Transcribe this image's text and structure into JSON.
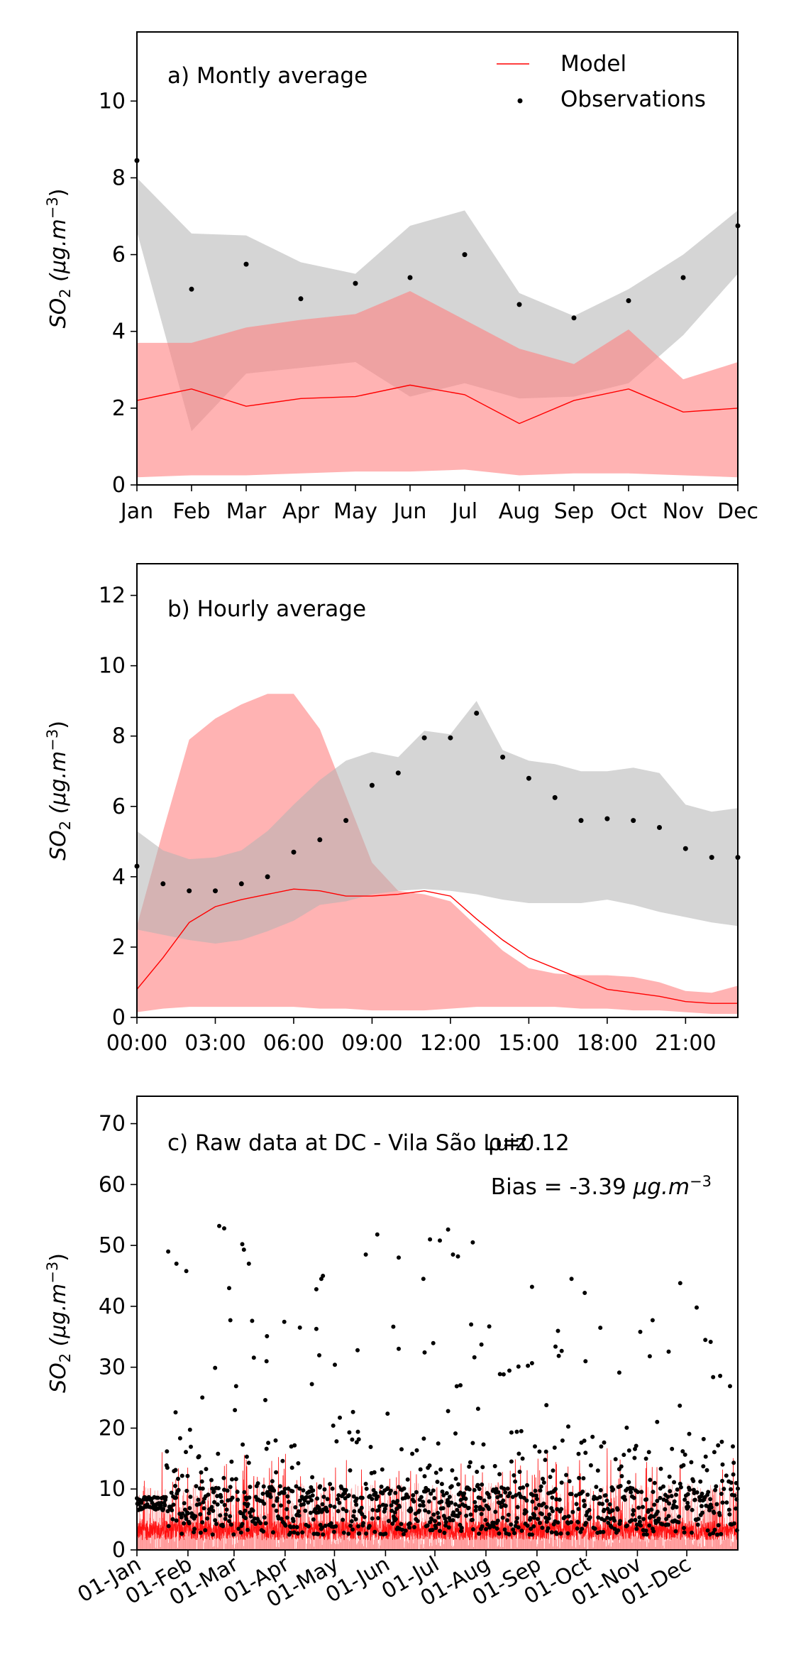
{
  "colors": {
    "model": "#ff0000",
    "model_band": "#ff8080",
    "obs": "#000000",
    "obs_band": "#b3b3b3"
  },
  "chart_data": [
    {
      "type": "line",
      "title": "a) Montly average",
      "ylabel": "SO₂ (μg.m⁻³)",
      "ylabel_parts": {
        "main": "SO",
        "sub": "2",
        "rest": " (μg.m",
        "sup": "−3",
        "close": ")"
      },
      "categories": [
        "Jan",
        "Feb",
        "Mar",
        "Apr",
        "May",
        "Jun",
        "Jul",
        "Aug",
        "Sep",
        "Oct",
        "Nov",
        "Dec"
      ],
      "ylim": [
        0,
        11.8
      ],
      "yticks": [
        0,
        2,
        4,
        6,
        8,
        10
      ],
      "legend": {
        "position": "top-right",
        "model_label": "Model",
        "obs_label": "Observations"
      },
      "series": [
        {
          "name": "Model",
          "kind": "line",
          "values": [
            2.2,
            2.5,
            2.05,
            2.25,
            2.3,
            2.6,
            2.35,
            1.6,
            2.2,
            2.5,
            1.9,
            2.0
          ]
        },
        {
          "name": "Model range",
          "kind": "band",
          "lower": [
            0.2,
            0.25,
            0.25,
            0.3,
            0.35,
            0.35,
            0.4,
            0.25,
            0.3,
            0.3,
            0.25,
            0.2
          ],
          "upper": [
            3.7,
            3.7,
            4.1,
            4.3,
            4.45,
            5.05,
            4.3,
            3.55,
            3.15,
            4.05,
            2.75,
            3.2
          ]
        },
        {
          "name": "Observations",
          "kind": "scatter",
          "values": [
            8.45,
            5.1,
            5.75,
            4.85,
            5.25,
            5.4,
            6.0,
            4.7,
            4.35,
            4.8,
            5.4,
            6.75
          ]
        },
        {
          "name": "Observation range",
          "kind": "band",
          "lower": [
            6.6,
            1.4,
            2.9,
            3.05,
            3.2,
            2.3,
            2.65,
            2.25,
            2.3,
            2.65,
            3.9,
            5.5
          ],
          "upper": [
            8.0,
            6.55,
            6.5,
            5.8,
            5.5,
            6.75,
            7.15,
            5.0,
            4.4,
            5.1,
            6.0,
            7.15
          ]
        }
      ]
    },
    {
      "type": "line",
      "title": "b) Hourly average",
      "ylabel_parts": {
        "main": "SO",
        "sub": "2",
        "rest": " (μg.m",
        "sup": "−3",
        "close": ")"
      },
      "x": [
        0,
        1,
        2,
        3,
        4,
        5,
        6,
        7,
        8,
        9,
        10,
        11,
        12,
        13,
        14,
        15,
        16,
        17,
        18,
        19,
        20,
        21,
        22,
        23
      ],
      "xticks": [
        "00:00",
        "03:00",
        "06:00",
        "09:00",
        "12:00",
        "15:00",
        "18:00",
        "21:00"
      ],
      "xlim": [
        0,
        23
      ],
      "ylim": [
        0,
        12.9
      ],
      "yticks": [
        0,
        2,
        4,
        6,
        8,
        10,
        12
      ],
      "series": [
        {
          "name": "Model",
          "kind": "line",
          "values": [
            0.8,
            1.7,
            2.7,
            3.15,
            3.35,
            3.5,
            3.65,
            3.6,
            3.45,
            3.45,
            3.5,
            3.6,
            3.45,
            2.8,
            2.2,
            1.7,
            1.4,
            1.1,
            0.8,
            0.7,
            0.6,
            0.45,
            0.4,
            0.4
          ]
        },
        {
          "name": "Model range",
          "kind": "band",
          "lower": [
            0.15,
            0.25,
            0.3,
            0.3,
            0.3,
            0.3,
            0.3,
            0.25,
            0.25,
            0.2,
            0.2,
            0.2,
            0.25,
            0.3,
            0.3,
            0.3,
            0.3,
            0.25,
            0.25,
            0.2,
            0.2,
            0.15,
            0.1,
            0.1
          ],
          "upper": [
            2.6,
            5.3,
            7.9,
            8.5,
            8.9,
            9.2,
            9.2,
            8.2,
            6.3,
            4.4,
            3.6,
            3.5,
            3.3,
            2.6,
            1.9,
            1.4,
            1.25,
            1.2,
            1.2,
            1.15,
            1.0,
            0.75,
            0.7,
            0.9
          ]
        },
        {
          "name": "Observations",
          "kind": "scatter",
          "values": [
            4.3,
            3.8,
            3.6,
            3.6,
            3.8,
            4.0,
            4.7,
            5.05,
            5.6,
            6.6,
            6.95,
            7.95,
            7.95,
            8.65,
            7.4,
            6.8,
            6.25,
            5.6,
            5.65,
            5.6,
            5.4,
            4.8,
            4.55,
            4.55
          ]
        },
        {
          "name": "Observation range",
          "kind": "band",
          "lower": [
            2.5,
            2.35,
            2.2,
            2.1,
            2.2,
            2.45,
            2.75,
            3.2,
            3.3,
            3.5,
            3.6,
            3.65,
            3.6,
            3.5,
            3.35,
            3.25,
            3.25,
            3.25,
            3.35,
            3.2,
            3.0,
            2.85,
            2.7,
            2.6
          ],
          "upper": [
            5.3,
            4.75,
            4.5,
            4.55,
            4.75,
            5.3,
            6.05,
            6.75,
            7.3,
            7.55,
            7.4,
            8.15,
            8.05,
            9.0,
            7.6,
            7.3,
            7.2,
            7.0,
            7.0,
            7.1,
            6.95,
            6.05,
            5.85,
            5.95
          ]
        }
      ]
    },
    {
      "type": "scatter",
      "title": "c) Raw data at DC - Vila São Luiz",
      "overlay_label": "ρ=0.12",
      "bias_label": "Bias = -3.39",
      "bias_unit_parts": {
        "rest": "μg.m",
        "sup": "−3"
      },
      "ylabel_parts": {
        "main": "SO",
        "sub": "2",
        "rest": " (μg.m",
        "sup": "−3",
        "close": ")"
      },
      "xticks": [
        "01-Jan",
        "01-Feb",
        "01-Mar",
        "01-Apr",
        "01-May",
        "01-Jun",
        "01-Jul",
        "01-Aug",
        "01-Sep",
        "01-Oct",
        "01-Nov",
        "01-Dec"
      ],
      "xtick_days": [
        0,
        31,
        59,
        90,
        120,
        151,
        181,
        212,
        243,
        273,
        304,
        334
      ],
      "xlim": [
        0,
        365
      ],
      "ylim": [
        0,
        74.5
      ],
      "yticks": [
        0,
        10,
        20,
        30,
        40,
        50,
        60,
        70
      ],
      "notable_observations": [
        {
          "x": 19,
          "y": 49
        },
        {
          "x": 24,
          "y": 47
        },
        {
          "x": 30,
          "y": 45.8
        },
        {
          "x": 50,
          "y": 53.2
        },
        {
          "x": 53,
          "y": 52.8
        },
        {
          "x": 56,
          "y": 43
        },
        {
          "x": 64,
          "y": 50.2
        },
        {
          "x": 65,
          "y": 49.3
        },
        {
          "x": 68,
          "y": 47
        },
        {
          "x": 99,
          "y": 36.5
        },
        {
          "x": 109,
          "y": 42.8
        },
        {
          "x": 112,
          "y": 44.5
        },
        {
          "x": 113,
          "y": 45
        },
        {
          "x": 139,
          "y": 48.5
        },
        {
          "x": 146,
          "y": 51.8
        },
        {
          "x": 159,
          "y": 48
        },
        {
          "x": 174,
          "y": 44.5
        },
        {
          "x": 178,
          "y": 51
        },
        {
          "x": 184,
          "y": 50.8
        },
        {
          "x": 189,
          "y": 52.6
        },
        {
          "x": 192,
          "y": 48.5
        },
        {
          "x": 195,
          "y": 48.2
        },
        {
          "x": 204,
          "y": 50.5
        },
        {
          "x": 240,
          "y": 43.2
        },
        {
          "x": 264,
          "y": 44.5
        },
        {
          "x": 272,
          "y": 42.2
        },
        {
          "x": 330,
          "y": 43.8
        },
        {
          "x": 340,
          "y": 39.8
        }
      ]
    }
  ]
}
